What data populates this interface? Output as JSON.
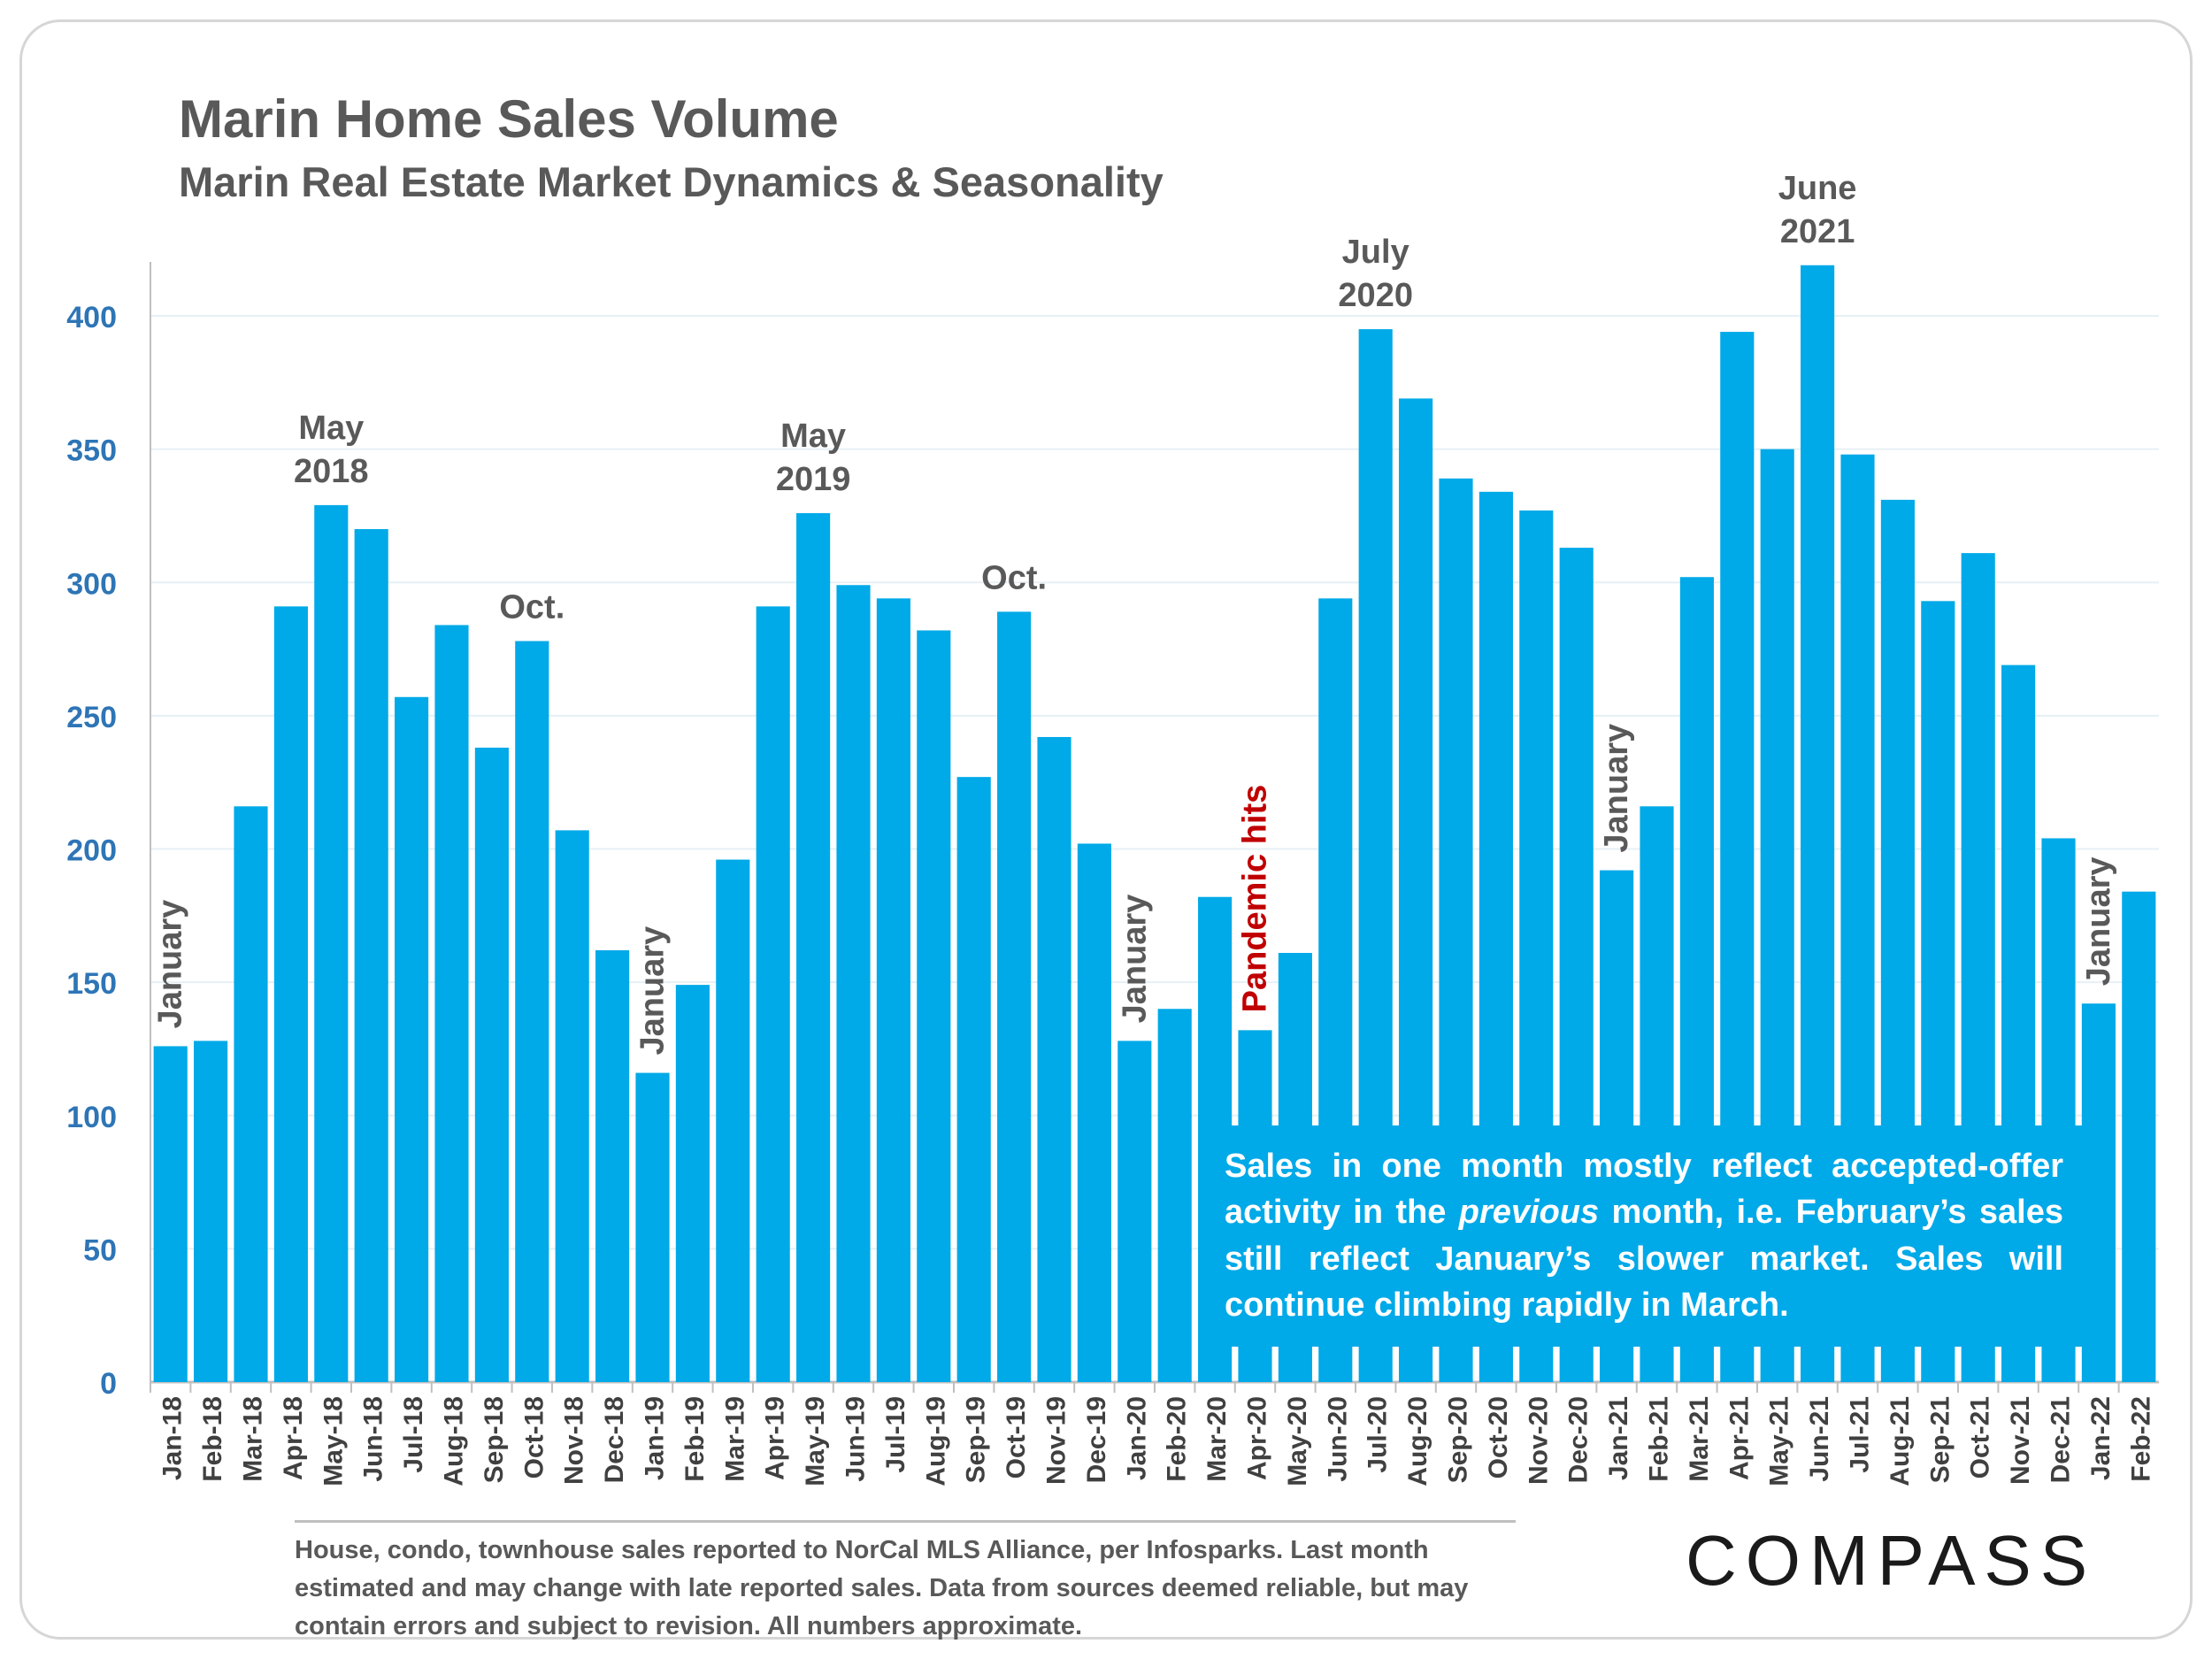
{
  "header": {
    "title": "Marin Home Sales Volume",
    "subtitle": "Marin Real Estate Market Dynamics & Seasonality"
  },
  "note": {
    "before": "Sales in one month mostly reflect accepted-offer activity in the ",
    "emphasis": "previous",
    "after": " month, i.e. February’s sales still reflect January’s slower market. Sales will continue climbing rapidly in March."
  },
  "footer": {
    "text": "House, condo, townhouse sales reported to NorCal MLS Alliance, per Infosparks. Last month estimated and may change with late reported sales. Data from sources deemed reliable, but may contain errors and subject to revision. All numbers approximate."
  },
  "brand": {
    "logo_text": "COMPASS"
  },
  "colors": {
    "bar": "#00a9e8",
    "axis_tick": "#2e75b6",
    "annotation": "#595959",
    "annotation_alert": "#c00000"
  },
  "chart_data": {
    "type": "bar",
    "title": "Marin Home Sales Volume",
    "subtitle": "Marin Real Estate Market Dynamics & Seasonality",
    "categories": [
      "Jan-18",
      "Feb-18",
      "Mar-18",
      "Apr-18",
      "May-18",
      "Jun-18",
      "Jul-18",
      "Aug-18",
      "Sep-18",
      "Oct-18",
      "Nov-18",
      "Dec-18",
      "Jan-19",
      "Feb-19",
      "Mar-19",
      "Apr-19",
      "May-19",
      "Jun-19",
      "Jul-19",
      "Aug-19",
      "Sep-19",
      "Oct-19",
      "Nov-19",
      "Dec-19",
      "Jan-20",
      "Feb-20",
      "Mar-20",
      "Apr-20",
      "May-20",
      "Jun-20",
      "Jul-20",
      "Aug-20",
      "Sep-20",
      "Oct-20",
      "Nov-20",
      "Dec-20",
      "Jan-21",
      "Feb-21",
      "Mar-21",
      "Apr-21",
      "May-21",
      "Jun-21",
      "Jul-21",
      "Aug-21",
      "Sep-21",
      "Oct-21",
      "Nov-21",
      "Dec-21",
      "Jan-22",
      "Feb-22"
    ],
    "values": [
      126,
      128,
      216,
      291,
      329,
      320,
      257,
      284,
      238,
      278,
      207,
      162,
      116,
      149,
      196,
      291,
      326,
      299,
      294,
      282,
      227,
      289,
      242,
      202,
      128,
      140,
      182,
      132,
      161,
      294,
      395,
      369,
      339,
      334,
      327,
      313,
      192,
      216,
      302,
      394,
      350,
      419,
      348,
      331,
      293,
      311,
      269,
      204,
      142,
      184
    ],
    "ylim": [
      0,
      420
    ],
    "yticks": [
      0,
      50,
      100,
      150,
      200,
      250,
      300,
      350,
      400
    ],
    "grid": true,
    "annotations": [
      {
        "index": 0,
        "text": "January",
        "vertical": true
      },
      {
        "index": 4,
        "text": "May|2018"
      },
      {
        "index": 9,
        "text": "Oct."
      },
      {
        "index": 12,
        "text": "January",
        "vertical": true
      },
      {
        "index": 16,
        "text": "May|2019"
      },
      {
        "index": 21,
        "text": "Oct."
      },
      {
        "index": 24,
        "text": "January",
        "vertical": true
      },
      {
        "index": 27,
        "text": "Pandemic hits",
        "vertical": true,
        "alert": true
      },
      {
        "index": 30,
        "text": "July|2020"
      },
      {
        "index": 36,
        "text": "January",
        "vertical": true
      },
      {
        "index": 41,
        "text": "June|2021"
      },
      {
        "index": 48,
        "text": "January",
        "vertical": true
      }
    ]
  }
}
